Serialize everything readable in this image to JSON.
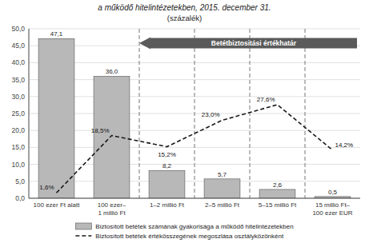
{
  "chart_data": {
    "type": "bar",
    "title": "a működő hitelintézetekben, 2015. december 31.",
    "subtitle": "(százalék)",
    "annotation": "Betétbiztositási értékhatár",
    "categories": [
      "100 ezer Ft alatt",
      "100 ezer–\n1 millió Ft",
      "1–2 millió Ft",
      "2–5 millió Ft",
      "5–15 millió Ft",
      "15 millió Ft–\n100 ezer EUR"
    ],
    "series": [
      {
        "name": "Biztosított betétek számának gyakorisága a működő hitelintézetekben",
        "type": "bar",
        "color": "#b8b8b8",
        "values": [
          47.1,
          36.0,
          8.2,
          5.7,
          2.6,
          0.5
        ],
        "value_labels": [
          "47,1",
          "36,0",
          "8,2",
          "5,7",
          "2,6",
          "0,5"
        ]
      },
      {
        "name": "Biztosított betétek értékösszegének megoszlása osztályközönként",
        "type": "line",
        "color": "#1a1a1a",
        "line_style": "dashed",
        "values": [
          1.6,
          18.5,
          15.2,
          23.0,
          27.6,
          14.2
        ],
        "value_labels": [
          "1,6%",
          "18,5%",
          "15,2%",
          "23,0%",
          "27,6%",
          "14,2%"
        ]
      }
    ],
    "ylim": [
      0,
      50
    ],
    "yticks": [
      {
        "value": 0.0,
        "label": "0,0"
      },
      {
        "value": 5.0,
        "label": "5,0"
      },
      {
        "value": 10.0,
        "label": "10,0"
      },
      {
        "value": 15.0,
        "label": "15,0"
      },
      {
        "value": 20.0,
        "label": "20,0"
      },
      {
        "value": 25.0,
        "label": "25,0"
      },
      {
        "value": 30.0,
        "label": "30,0"
      },
      {
        "value": 35.0,
        "label": "35,0"
      },
      {
        "value": 40.0,
        "label": "40,0"
      },
      {
        "value": 45.0,
        "label": "45,0"
      },
      {
        "value": 50.0,
        "label": "50,0"
      }
    ],
    "grid": true,
    "data_labels": true,
    "legend": "bottom"
  }
}
